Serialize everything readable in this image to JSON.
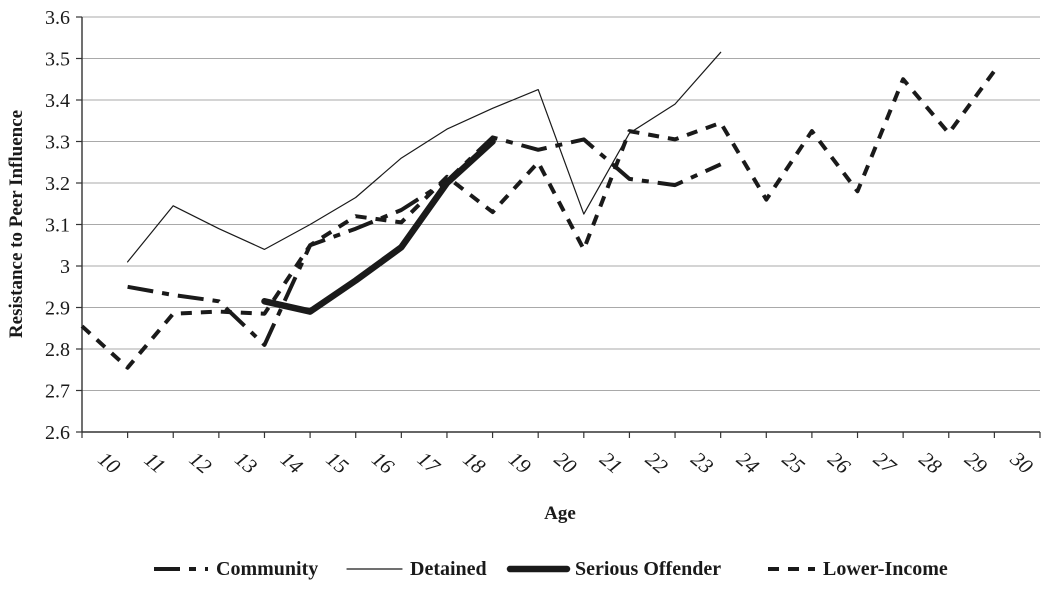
{
  "chart_data": {
    "type": "line",
    "title": "",
    "xlabel": "Age",
    "ylabel": "Resistance to Peer Influence",
    "x_categories": [
      "10",
      "11",
      "12",
      "13",
      "14",
      "15",
      "16",
      "17",
      "18",
      "19",
      "20",
      "21",
      "22",
      "23",
      "24",
      "25",
      "26",
      "27",
      "28",
      "29",
      "30"
    ],
    "y_ticks": [
      "2.6",
      "2.7",
      "2.8",
      "2.9",
      "3",
      "3.1",
      "3.2",
      "3.3",
      "3.4",
      "3.5",
      "3.6"
    ],
    "ylim": [
      2.6,
      3.6
    ],
    "grid": "horizontal",
    "legend_position": "bottom",
    "series": [
      {
        "name": "Community",
        "style": "long-dash",
        "color": "#1a1a1a",
        "points": [
          [
            11,
            2.95
          ],
          [
            12,
            2.93
          ],
          [
            13,
            2.915
          ],
          [
            14,
            2.81
          ],
          [
            15,
            3.05
          ],
          [
            16,
            3.09
          ],
          [
            17,
            3.135
          ],
          [
            18,
            3.205
          ],
          [
            19,
            3.31
          ],
          [
            20,
            3.28
          ],
          [
            21,
            3.305
          ],
          [
            22,
            3.21
          ],
          [
            23,
            3.195
          ],
          [
            24,
            3.245
          ]
        ]
      },
      {
        "name": "Detained",
        "style": "thin",
        "color": "#1a1a1a",
        "points": [
          [
            11,
            3.01
          ],
          [
            12,
            3.145
          ],
          [
            13,
            3.09
          ],
          [
            14,
            3.04
          ],
          [
            15,
            3.1
          ],
          [
            16,
            3.165
          ],
          [
            17,
            3.26
          ],
          [
            18,
            3.33
          ],
          [
            19,
            3.38
          ],
          [
            20,
            3.425
          ],
          [
            21,
            3.125
          ],
          [
            22,
            3.32
          ],
          [
            23,
            3.39
          ],
          [
            24,
            3.515
          ]
        ]
      },
      {
        "name": "Serious Offender",
        "style": "thick",
        "color": "#1a1a1a",
        "points": [
          [
            14,
            2.915
          ],
          [
            15,
            2.89
          ],
          [
            16,
            2.965
          ],
          [
            17,
            3.045
          ],
          [
            18,
            3.2
          ],
          [
            19,
            3.3
          ]
        ]
      },
      {
        "name": "Lower-Income",
        "style": "short-dash",
        "color": "#1a1a1a",
        "points": [
          [
            10,
            2.855
          ],
          [
            11,
            2.755
          ],
          [
            12,
            2.885
          ],
          [
            13,
            2.89
          ],
          [
            14,
            2.885
          ],
          [
            15,
            3.05
          ],
          [
            16,
            3.12
          ],
          [
            17,
            3.105
          ],
          [
            18,
            3.215
          ],
          [
            19,
            3.13
          ],
          [
            20,
            3.25
          ],
          [
            21,
            3.04
          ],
          [
            22,
            3.325
          ],
          [
            23,
            3.305
          ],
          [
            24,
            3.345
          ],
          [
            25,
            3.16
          ],
          [
            26,
            3.325
          ],
          [
            27,
            3.18
          ],
          [
            28,
            3.45
          ],
          [
            29,
            3.32
          ],
          [
            30,
            3.47
          ]
        ]
      }
    ]
  }
}
